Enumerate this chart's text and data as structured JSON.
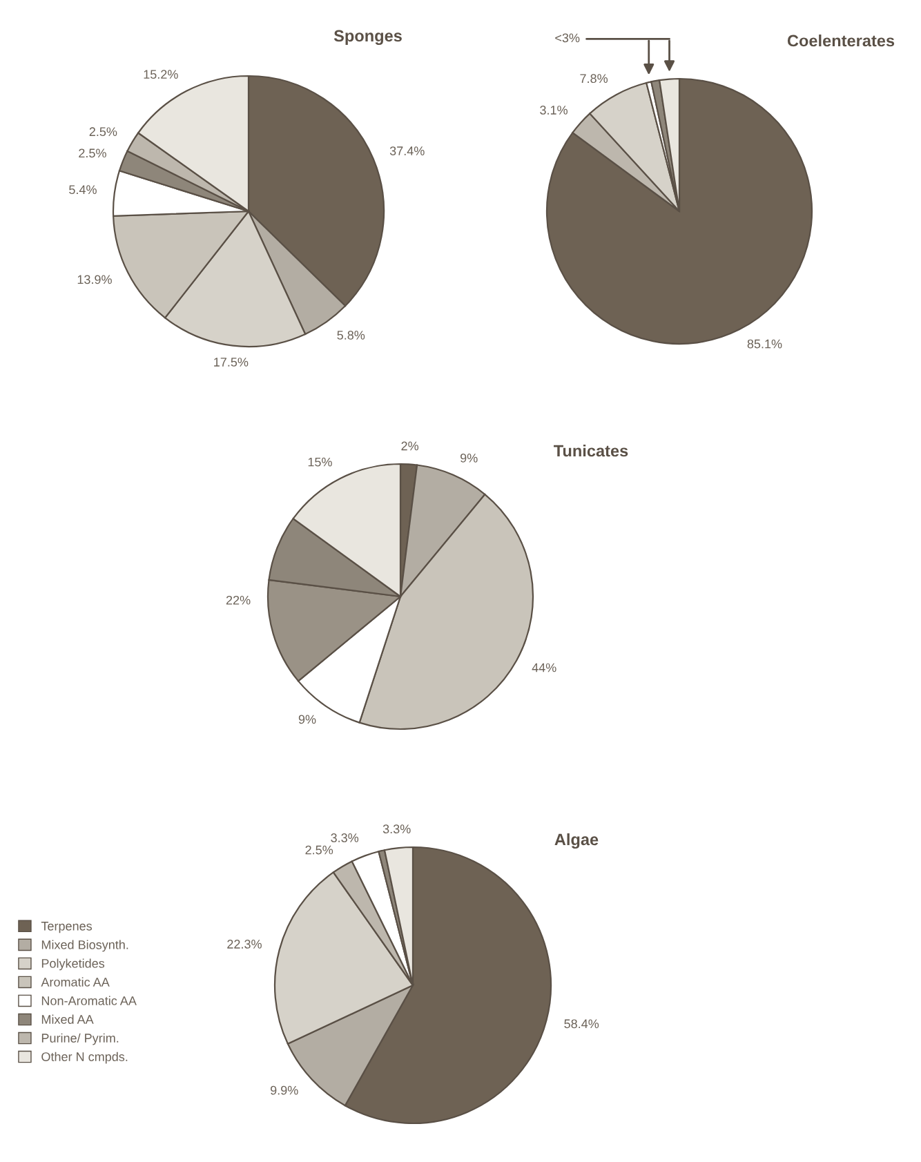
{
  "chart_data": [
    {
      "type": "pie",
      "title": "Sponges",
      "legend": "bottom left",
      "categories": [
        "Terpenes",
        "Mixed Biosynth.",
        "Polyketides",
        "Aromatic AA",
        "Non-Aromatic AA",
        "Mixed AA",
        "Purine/ Pyrim.",
        "Other N cmpds."
      ],
      "values": [
        37.4,
        5.8,
        17.5,
        13.9,
        5.4,
        2.5,
        2.5,
        15.2
      ],
      "colors": [
        "#6e6254",
        "#b3ada3",
        "#d6d2c9",
        "#c9c4ba",
        "#ffffff",
        "#8e867a",
        "#bdb7ad",
        "#e9e6df"
      ],
      "value_labels": [
        "37.4%",
        "5.8%",
        "17.5%",
        "13.9%",
        "5.4%",
        "2.5%",
        "2.5%",
        "15.2%"
      ]
    },
    {
      "type": "pie",
      "title": "Coelenterates",
      "categories": [
        null,
        null,
        null,
        null,
        null,
        null
      ],
      "values": [
        85.1,
        3.1,
        7.8,
        0.6,
        1.0,
        2.4
      ],
      "colors": [
        "#6e6254",
        "#bdb7ad",
        "#d6d2c9",
        "#ffffff",
        "#8e867a",
        "#e9e6df"
      ],
      "value_labels": [
        "85.1%",
        "3.1%",
        "7.8%",
        null,
        null,
        null
      ],
      "annotations": [
        "<3%"
      ]
    },
    {
      "type": "pie",
      "title": "Tunicates",
      "categories": [
        null,
        null,
        null,
        null,
        null,
        null,
        null
      ],
      "values": [
        2,
        9,
        44,
        9,
        13,
        8,
        15
      ],
      "colors": [
        "#6e6254",
        "#b3ada3",
        "#c9c4ba",
        "#ffffff",
        "#9a9286",
        "#8e867a",
        "#e9e6df"
      ],
      "value_labels": [
        "2%",
        "9%",
        "44%",
        "9%",
        null,
        null,
        "15%"
      ],
      "annotations": [
        "22%"
      ]
    },
    {
      "type": "pie",
      "title": "Algae",
      "categories": [
        null,
        null,
        null,
        null,
        null,
        null,
        null
      ],
      "values": [
        58.4,
        9.9,
        22.3,
        2.5,
        3.3,
        0.7,
        3.3
      ],
      "colors": [
        "#6e6254",
        "#b3ada3",
        "#d6d2c9",
        "#bdb7ad",
        "#ffffff",
        "#8e867a",
        "#e9e6df"
      ],
      "value_labels": [
        "58.4%",
        "9.9%",
        "22.3%",
        "2.5%",
        "3.3%",
        null,
        "3.3%"
      ]
    }
  ]
}
